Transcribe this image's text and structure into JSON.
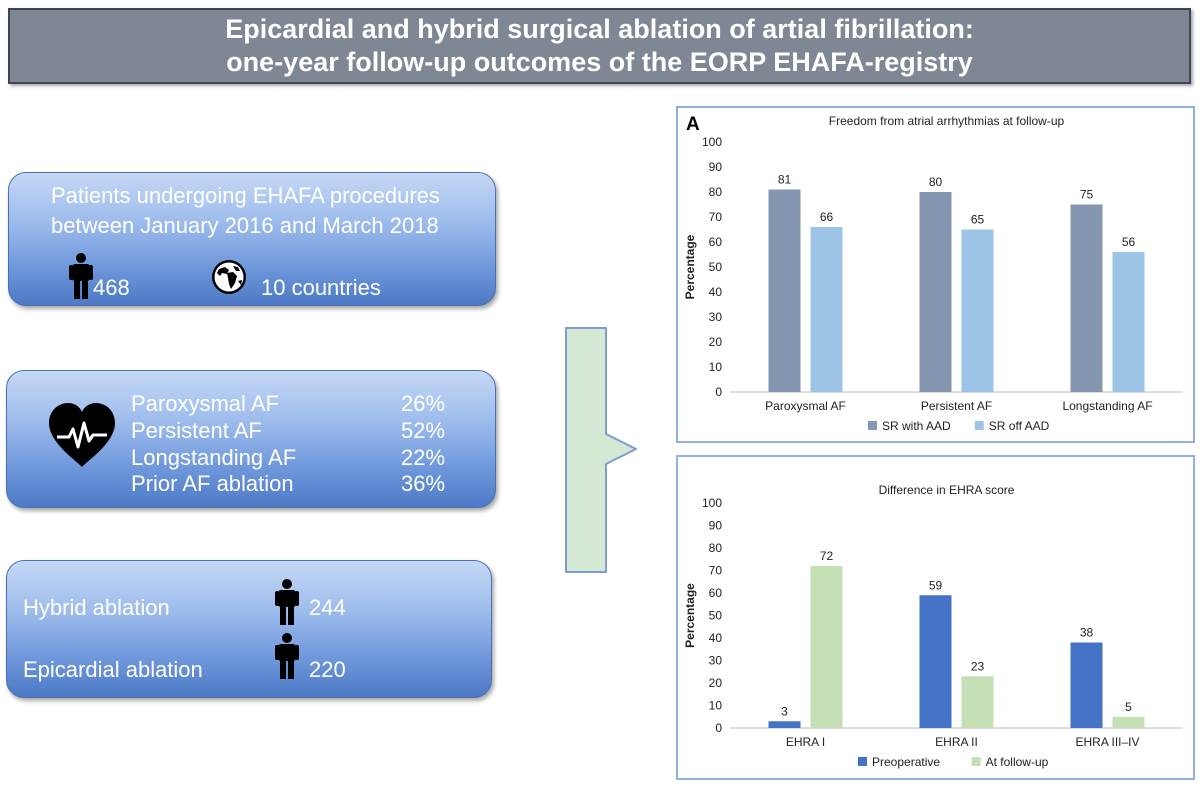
{
  "title": {
    "line1": "Epicardial and hybrid surgical ablation of artial fibrillation:",
    "line2": "one-year follow-up outcomes of the EORP EHAFA-registry"
  },
  "panel_patients": {
    "line1": "Patients undergoing EHAFA procedures",
    "line2": "between January 2016 and March 2018",
    "patients_count": "468",
    "countries": "10 countries"
  },
  "panel_af": {
    "rows": [
      {
        "label": "Paroxysmal AF",
        "value": "26%"
      },
      {
        "label": "Persistent AF",
        "value": "52%"
      },
      {
        "label": "Longstanding AF",
        "value": "22%"
      },
      {
        "label": "Prior AF ablation",
        "value": "36%"
      }
    ]
  },
  "panel_ablation": {
    "rows": [
      {
        "label": "Hybrid ablation",
        "value": "244"
      },
      {
        "label": "Epicardial ablation",
        "value": "220"
      }
    ]
  },
  "colors": {
    "series_a1": "#8496b0",
    "series_a2": "#9dc3e6",
    "series_b1": "#4472c4",
    "series_b2": "#c5e0b4",
    "arrow_fill": "#d5e8d4",
    "title_bg": "#7f8694"
  },
  "chart_data": [
    {
      "type": "bar",
      "panel_label": "A",
      "title": "Freedom from atrial arrhythmias at follow-up",
      "ylabel": "Percentage",
      "xlabel": "",
      "ylim": [
        0,
        100
      ],
      "yticks": [
        0,
        10,
        20,
        30,
        40,
        50,
        60,
        70,
        80,
        90,
        100
      ],
      "categories": [
        "Paroxysmal AF",
        "Persistent AF",
        "Longstanding AF"
      ],
      "series": [
        {
          "name": "SR with AAD",
          "values": [
            81,
            80,
            75
          ]
        },
        {
          "name": "SR off AAD",
          "values": [
            66,
            65,
            56
          ]
        }
      ],
      "legend": "bottom"
    },
    {
      "type": "bar",
      "title": "Difference in EHRA score",
      "ylabel": "Percentage",
      "xlabel": "",
      "ylim": [
        0,
        100
      ],
      "yticks": [
        0,
        10,
        20,
        30,
        40,
        50,
        60,
        70,
        80,
        90,
        100
      ],
      "categories": [
        "EHRA I",
        "EHRA II",
        "EHRA III–IV"
      ],
      "series": [
        {
          "name": "Preoperative",
          "values": [
            3,
            59,
            38
          ]
        },
        {
          "name": "At follow-up",
          "values": [
            72,
            23,
            5
          ]
        }
      ],
      "legend": "bottom"
    }
  ]
}
